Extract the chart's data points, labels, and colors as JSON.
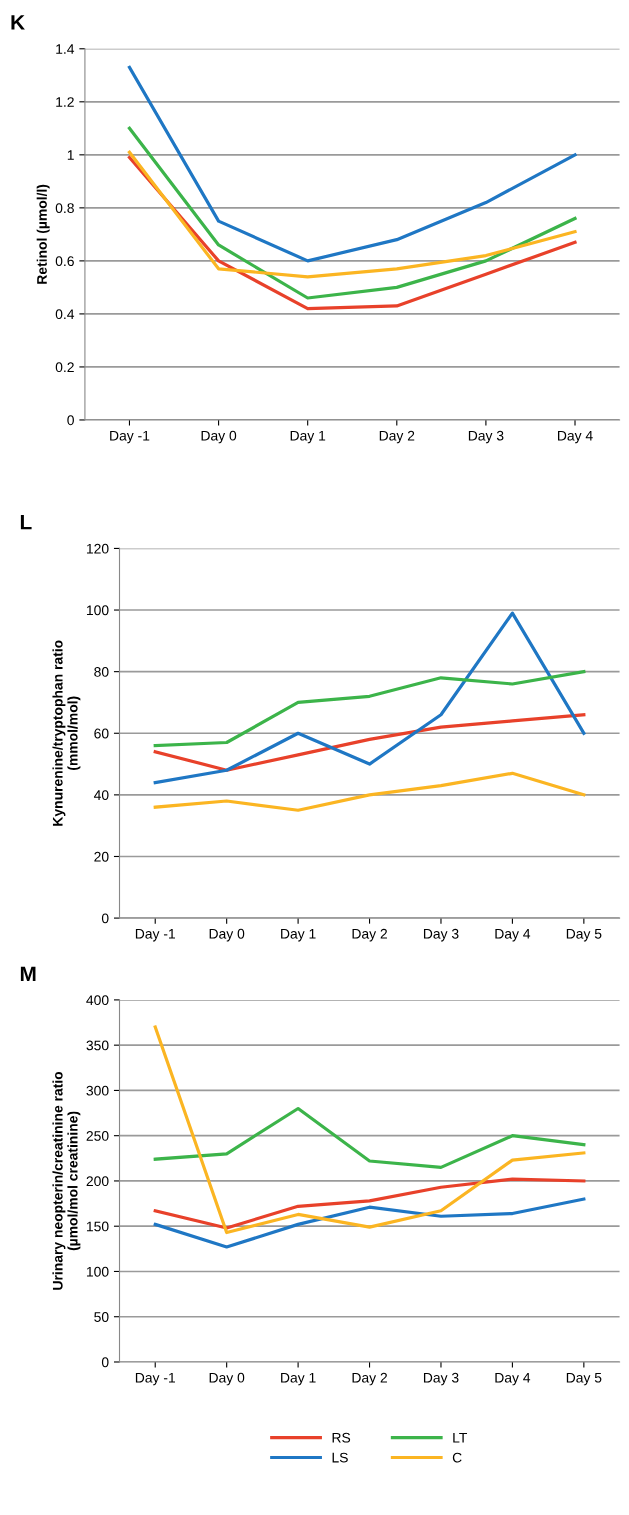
{
  "chart_data": [
    {
      "type": "line",
      "title": "K",
      "ylabel": "Retinol (µmol/l)",
      "categories": [
        "Day -1",
        "Day 0",
        "Day 1",
        "Day 2",
        "Day 3",
        "Day 4"
      ],
      "ylim": [
        0,
        1.4
      ],
      "yticks": [
        0,
        0.2,
        0.4,
        0.6,
        0.8,
        1,
        1.2,
        1.4
      ],
      "grid": "y",
      "marker": "none",
      "line_style": "solid",
      "series": [
        {
          "color": "#e8412a",
          "values": [
            0.99,
            0.6,
            0.42,
            0.43,
            0.55,
            0.67
          ]
        },
        {
          "color": "#1f77c4",
          "values": [
            1.33,
            0.75,
            0.6,
            0.68,
            0.82,
            1.0
          ]
        },
        {
          "color": "#3cb44a",
          "values": [
            1.1,
            0.66,
            0.46,
            0.5,
            0.6,
            0.76
          ]
        },
        {
          "color": "#fbb522",
          "values": [
            1.01,
            0.57,
            0.54,
            0.57,
            0.62,
            0.71
          ]
        }
      ]
    },
    {
      "type": "line",
      "title": "L",
      "ylabel": "Kynurenine/tryptophan ratio\n(mmol/mol)",
      "categories": [
        "Day -1",
        "Day 0",
        "Day 1",
        "Day 2",
        "Day 3",
        "Day 4",
        "Day 5"
      ],
      "ylim": [
        0,
        120
      ],
      "yticks": [
        0,
        20,
        40,
        60,
        80,
        100,
        120
      ],
      "grid": "y",
      "marker": "none",
      "line_style": "solid",
      "series": [
        {
          "color": "#e8412a",
          "values": [
            54,
            48,
            53,
            58,
            62,
            64,
            66
          ]
        },
        {
          "color": "#1f77c4",
          "values": [
            44,
            48,
            60,
            50,
            66,
            99,
            60
          ]
        },
        {
          "color": "#3cb44a",
          "values": [
            56,
            57,
            70,
            72,
            78,
            76,
            80
          ]
        },
        {
          "color": "#fbb522",
          "values": [
            36,
            38,
            35,
            40,
            43,
            47,
            40
          ]
        }
      ]
    },
    {
      "type": "line",
      "title": "M",
      "ylabel": "Urinary neopterin/creatinine ratio\n(µmol/mol creatinine)",
      "categories": [
        "Day -1",
        "Day 0",
        "Day 1",
        "Day 2",
        "Day 3",
        "Day 4",
        "Day 5"
      ],
      "ylim": [
        0,
        400
      ],
      "yticks": [
        0,
        50,
        100,
        150,
        200,
        250,
        300,
        350,
        400
      ],
      "grid": "y",
      "marker": "none",
      "line_style": "solid",
      "legend": "bottom",
      "series": [
        {
          "name": "RS",
          "color": "#e8412a",
          "values": [
            167,
            148,
            172,
            178,
            193,
            202,
            200
          ]
        },
        {
          "name": "LS",
          "color": "#1f77c4",
          "values": [
            152,
            127,
            152,
            171,
            161,
            164,
            180
          ]
        },
        {
          "name": "LT",
          "color": "#3cb44a",
          "values": [
            224,
            230,
            280,
            222,
            215,
            250,
            240
          ]
        },
        {
          "name": "C",
          "color": "#fbb522",
          "values": [
            370,
            143,
            163,
            149,
            167,
            223,
            231
          ]
        }
      ]
    }
  ]
}
